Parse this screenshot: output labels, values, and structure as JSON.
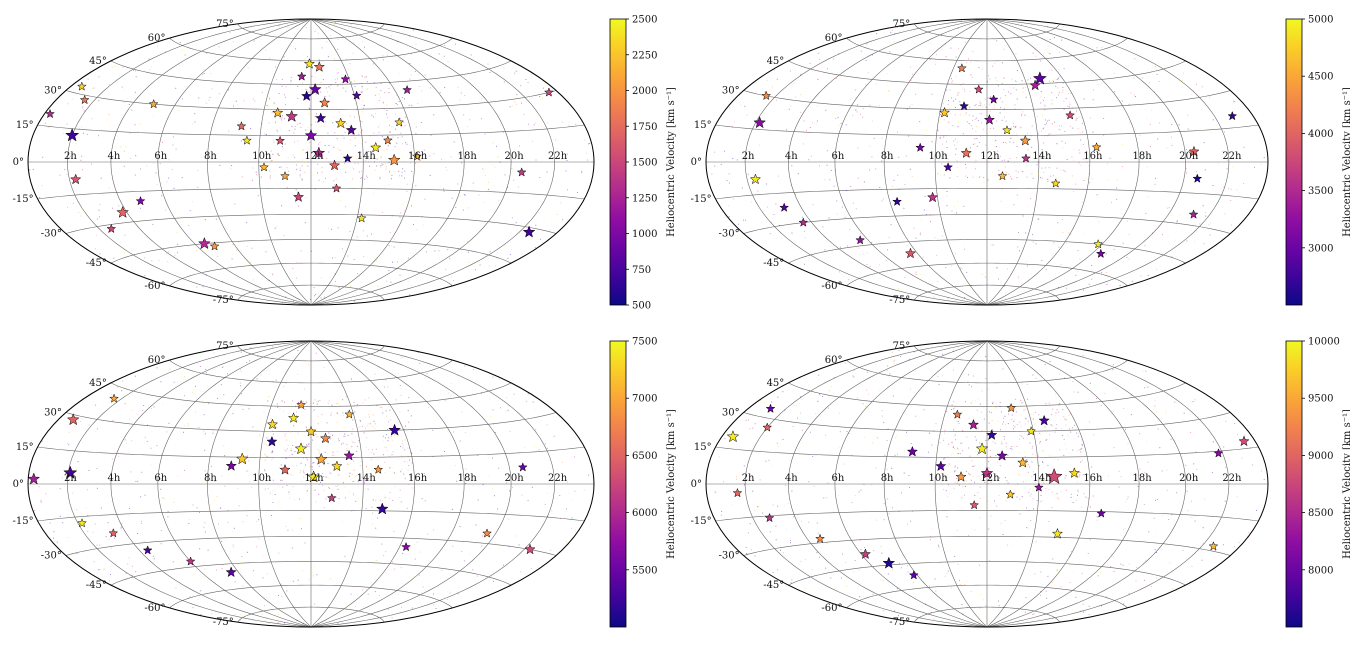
{
  "chart_data": [
    {
      "type": "scatter",
      "projection": "hammer-aitoff",
      "ra_tick_labels": [
        "2h",
        "4h",
        "6h",
        "8h",
        "10h",
        "12h",
        "14h",
        "16h",
        "18h",
        "20h",
        "22h"
      ],
      "dec_tick_labels": [
        "75°",
        "60°",
        "45°",
        "30°",
        "15°",
        "0°",
        "-15°",
        "-30°",
        "-45°",
        "-60°",
        "-75°"
      ],
      "colorbar": {
        "label": "Heliocentric Velocity [km s⁻¹]",
        "range": [
          500,
          2500
        ],
        "ticks": [
          500,
          750,
          1000,
          1250,
          1500,
          1750,
          2000,
          2250,
          2500
        ],
        "tick_labels": [
          "500",
          "750",
          "1000",
          "1250",
          "1500",
          "1750",
          "2000",
          "2250",
          "2500"
        ],
        "colormap": "plasma"
      },
      "star_markers": [
        {
          "ra_h": 11.9,
          "dec": 58,
          "v": 2400,
          "s": 7
        },
        {
          "ra_h": 12.5,
          "dec": 56,
          "v": 1800,
          "s": 7
        },
        {
          "ra_h": 11.5,
          "dec": 50,
          "v": 1200,
          "s": 6
        },
        {
          "ra_h": 12.2,
          "dec": 42,
          "v": 900,
          "s": 8
        },
        {
          "ra_h": 11.8,
          "dec": 38,
          "v": 600,
          "s": 7
        },
        {
          "ra_h": 12.6,
          "dec": 34,
          "v": 1900,
          "s": 7
        },
        {
          "ra_h": 10.6,
          "dec": 28,
          "v": 2200,
          "s": 7
        },
        {
          "ra_h": 11.2,
          "dec": 26,
          "v": 1400,
          "s": 8
        },
        {
          "ra_h": 12.4,
          "dec": 25,
          "v": 700,
          "s": 7
        },
        {
          "ra_h": 13.2,
          "dec": 22,
          "v": 2300,
          "s": 7
        },
        {
          "ra_h": 13.6,
          "dec": 18,
          "v": 800,
          "s": 7
        },
        {
          "ra_h": 12.0,
          "dec": 15,
          "v": 1000,
          "s": 8
        },
        {
          "ra_h": 10.8,
          "dec": 12,
          "v": 1600,
          "s": 6
        },
        {
          "ra_h": 14.5,
          "dec": 8,
          "v": 2400,
          "s": 7
        },
        {
          "ra_h": 12.3,
          "dec": 5,
          "v": 1300,
          "s": 8
        },
        {
          "ra_h": 13.4,
          "dec": 2,
          "v": 600,
          "s": 6
        },
        {
          "ra_h": 15.2,
          "dec": 1,
          "v": 2000,
          "s": 8
        },
        {
          "ra_h": 16.1,
          "dec": 3,
          "v": 2200,
          "s": 6
        },
        {
          "ra_h": 12.9,
          "dec": -2,
          "v": 1700,
          "s": 7
        },
        {
          "ra_h": 11.0,
          "dec": -8,
          "v": 2100,
          "s": 6
        },
        {
          "ra_h": 11.5,
          "dec": -20,
          "v": 1500,
          "s": 7
        },
        {
          "ra_h": 14.2,
          "dec": -32,
          "v": 2400,
          "s": 6
        },
        {
          "ra_h": 2.0,
          "dec": 12,
          "v": 700,
          "s": 9
        },
        {
          "ra_h": 2.3,
          "dec": -8,
          "v": 1600,
          "s": 7
        },
        {
          "ra_h": 3.8,
          "dec": -25,
          "v": 1700,
          "s": 8
        },
        {
          "ra_h": 2.6,
          "dec": -32,
          "v": 1500,
          "s": 6
        },
        {
          "ra_h": 6.5,
          "dec": -45,
          "v": 1300,
          "s": 8
        },
        {
          "ra_h": 6.9,
          "dec": -47,
          "v": 2000,
          "s": 6
        },
        {
          "ra_h": 1.5,
          "dec": 28,
          "v": 1800,
          "s": 6
        },
        {
          "ra_h": 0.6,
          "dec": 33,
          "v": 2300,
          "s": 6
        },
        {
          "ra_h": 5.0,
          "dec": 30,
          "v": 2100,
          "s": 6
        },
        {
          "ra_h": 22.5,
          "dec": -32,
          "v": 700,
          "s": 8
        },
        {
          "ra_h": 20.5,
          "dec": -5,
          "v": 1400,
          "s": 6
        },
        {
          "ra_h": 16.6,
          "dec": 40,
          "v": 1200,
          "s": 6
        },
        {
          "ra_h": 15.6,
          "dec": 22,
          "v": 2300,
          "s": 6
        },
        {
          "ra_h": 9.5,
          "dec": 12,
          "v": 2400,
          "s": 6
        },
        {
          "ra_h": 9.2,
          "dec": 20,
          "v": 1700,
          "s": 6
        },
        {
          "ra_h": 13.8,
          "dec": 48,
          "v": 1100,
          "s": 6
        },
        {
          "ra_h": 14.1,
          "dec": 38,
          "v": 800,
          "s": 6
        },
        {
          "ra_h": 15.0,
          "dec": 12,
          "v": 1900,
          "s": 6
        },
        {
          "ra_h": 10.2,
          "dec": -3,
          "v": 2200,
          "s": 6
        },
        {
          "ra_h": 13.0,
          "dec": -15,
          "v": 1600,
          "s": 6
        },
        {
          "ra_h": 4.9,
          "dec": -20,
          "v": 1000,
          "s": 6
        },
        {
          "ra_h": 0.3,
          "dec": 20,
          "v": 1300,
          "s": 6
        },
        {
          "ra_h": 23.5,
          "dec": 30,
          "v": 1500,
          "s": 6
        }
      ]
    },
    {
      "type": "scatter",
      "projection": "hammer-aitoff",
      "ra_tick_labels": [
        "2h",
        "4h",
        "6h",
        "8h",
        "10h",
        "12h",
        "14h",
        "16h",
        "18h",
        "20h",
        "22h"
      ],
      "dec_tick_labels": [
        "75°",
        "60°",
        "45°",
        "30°",
        "15°",
        "0°",
        "-15°",
        "-30°",
        "-45°",
        "-60°",
        "-75°"
      ],
      "colorbar": {
        "label": "Heliocentric Velocity [km s⁻¹]",
        "range": [
          2500,
          5000
        ],
        "ticks": [
          3000,
          3500,
          4000,
          4500,
          5000
        ],
        "tick_labels": [
          "3000",
          "3500",
          "4000",
          "4500",
          "5000"
        ],
        "colormap": "plasma"
      },
      "star_markers": [
        {
          "ra_h": 10.5,
          "dec": 55,
          "v": 4200,
          "s": 6
        },
        {
          "ra_h": 14.8,
          "dec": 48,
          "v": 2900,
          "s": 9
        },
        {
          "ra_h": 14.4,
          "dec": 44,
          "v": 3400,
          "s": 7
        },
        {
          "ra_h": 11.6,
          "dec": 42,
          "v": 3800,
          "s": 6
        },
        {
          "ra_h": 10.2,
          "dec": 28,
          "v": 4700,
          "s": 7
        },
        {
          "ra_h": 11.0,
          "dec": 32,
          "v": 2700,
          "s": 6
        },
        {
          "ra_h": 12.1,
          "dec": 24,
          "v": 3300,
          "s": 7
        },
        {
          "ra_h": 12.8,
          "dec": 18,
          "v": 4900,
          "s": 6
        },
        {
          "ra_h": 13.5,
          "dec": 12,
          "v": 4400,
          "s": 7
        },
        {
          "ra_h": 9.4,
          "dec": 8,
          "v": 3100,
          "s": 6
        },
        {
          "ra_h": 11.2,
          "dec": 5,
          "v": 4100,
          "s": 7
        },
        {
          "ra_h": 10.5,
          "dec": -3,
          "v": 2800,
          "s": 6
        },
        {
          "ra_h": 12.6,
          "dec": -8,
          "v": 4600,
          "s": 6
        },
        {
          "ra_h": 13.5,
          "dec": 2,
          "v": 3600,
          "s": 6
        },
        {
          "ra_h": 14.7,
          "dec": -12,
          "v": 4800,
          "s": 6
        },
        {
          "ra_h": 2.2,
          "dec": 18,
          "v": 3200,
          "s": 8
        },
        {
          "ra_h": 2.4,
          "dec": -8,
          "v": 4900,
          "s": 7
        },
        {
          "ra_h": 3.2,
          "dec": -22,
          "v": 2900,
          "s": 6
        },
        {
          "ra_h": 3.6,
          "dec": -30,
          "v": 3500,
          "s": 6
        },
        {
          "ra_h": 5.6,
          "dec": -42,
          "v": 3300,
          "s": 6
        },
        {
          "ra_h": 7.6,
          "dec": -52,
          "v": 3900,
          "s": 7
        },
        {
          "ra_h": 20.4,
          "dec": 5,
          "v": 4000,
          "s": 7
        },
        {
          "ra_h": 20.6,
          "dec": -8,
          "v": 2600,
          "s": 6
        },
        {
          "ra_h": 22.9,
          "dec": 20,
          "v": 2700,
          "s": 6
        },
        {
          "ra_h": 17.8,
          "dec": -45,
          "v": 4900,
          "s": 6
        },
        {
          "ra_h": 18.5,
          "dec": -50,
          "v": 3100,
          "s": 6
        },
        {
          "ra_h": 21.2,
          "dec": -25,
          "v": 3400,
          "s": 6
        },
        {
          "ra_h": 1.5,
          "dec": 30,
          "v": 4300,
          "s": 6
        },
        {
          "ra_h": 15.5,
          "dec": 26,
          "v": 3800,
          "s": 6
        },
        {
          "ra_h": 9.8,
          "dec": -20,
          "v": 3600,
          "s": 7
        },
        {
          "ra_h": 8.3,
          "dec": -22,
          "v": 2700,
          "s": 6
        },
        {
          "ra_h": 16.3,
          "dec": 8,
          "v": 4500,
          "s": 6
        },
        {
          "ra_h": 12.3,
          "dec": 36,
          "v": 3000,
          "s": 6
        }
      ]
    },
    {
      "type": "scatter",
      "projection": "hammer-aitoff",
      "ra_tick_labels": [
        "2h",
        "4h",
        "6h",
        "8h",
        "10h",
        "12h",
        "14h",
        "16h",
        "18h",
        "20h",
        "22h"
      ],
      "dec_tick_labels": [
        "75°",
        "60°",
        "45°",
        "30°",
        "15°",
        "0°",
        "-15°",
        "-30°",
        "-45°",
        "-60°",
        "-75°"
      ],
      "colorbar": {
        "label": "Heliocentric Velocity [km s⁻¹]",
        "range": [
          5000,
          7500
        ],
        "ticks": [
          5500,
          6000,
          6500,
          7000,
          7500
        ],
        "tick_labels": [
          "5500",
          "6000",
          "6500",
          "7000",
          "7500"
        ],
        "colormap": "plasma"
      },
      "star_markers": [
        {
          "ra_h": 10.3,
          "dec": 34,
          "v": 7300,
          "s": 7
        },
        {
          "ra_h": 11.2,
          "dec": 38,
          "v": 7400,
          "s": 7
        },
        {
          "ra_h": 12.0,
          "dec": 30,
          "v": 7200,
          "s": 7
        },
        {
          "ra_h": 12.6,
          "dec": 26,
          "v": 6800,
          "s": 7
        },
        {
          "ra_h": 11.6,
          "dec": 20,
          "v": 7400,
          "s": 8
        },
        {
          "ra_h": 12.4,
          "dec": 14,
          "v": 7000,
          "s": 8
        },
        {
          "ra_h": 13.0,
          "dec": 10,
          "v": 7300,
          "s": 7
        },
        {
          "ra_h": 11.0,
          "dec": 8,
          "v": 6500,
          "s": 7
        },
        {
          "ra_h": 12.1,
          "dec": 4,
          "v": 7400,
          "s": 8
        },
        {
          "ra_h": 13.5,
          "dec": 16,
          "v": 5800,
          "s": 7
        },
        {
          "ra_h": 14.6,
          "dec": 8,
          "v": 6900,
          "s": 6
        },
        {
          "ra_h": 9.3,
          "dec": 14,
          "v": 7200,
          "s": 8
        },
        {
          "ra_h": 8.9,
          "dec": 10,
          "v": 5600,
          "s": 7
        },
        {
          "ra_h": 10.4,
          "dec": 24,
          "v": 5200,
          "s": 7
        },
        {
          "ra_h": 15.6,
          "dec": 30,
          "v": 5200,
          "s": 8
        },
        {
          "ra_h": 2.1,
          "dec": 5,
          "v": 5300,
          "s": 9
        },
        {
          "ra_h": 0.3,
          "dec": 2,
          "v": 5900,
          "s": 8
        },
        {
          "ra_h": 2.2,
          "dec": -18,
          "v": 7400,
          "s": 6
        },
        {
          "ra_h": 3.4,
          "dec": -24,
          "v": 6500,
          "s": 6
        },
        {
          "ra_h": 4.4,
          "dec": -34,
          "v": 5300,
          "s": 6
        },
        {
          "ra_h": 6.0,
          "dec": -42,
          "v": 6100,
          "s": 6
        },
        {
          "ra_h": 7.6,
          "dec": -50,
          "v": 5400,
          "s": 7
        },
        {
          "ra_h": 14.8,
          "dec": -14,
          "v": 5200,
          "s": 8
        },
        {
          "ra_h": 19.6,
          "dec": -25,
          "v": 6800,
          "s": 6
        },
        {
          "ra_h": 20.6,
          "dec": 8,
          "v": 5500,
          "s": 6
        },
        {
          "ra_h": 1.6,
          "dec": 40,
          "v": 7000,
          "s": 6
        },
        {
          "ra_h": 0.8,
          "dec": 28,
          "v": 6500,
          "s": 8
        },
        {
          "ra_h": 16.3,
          "dec": -35,
          "v": 5700,
          "s": 6
        },
        {
          "ra_h": 22.3,
          "dec": -30,
          "v": 6300,
          "s": 7
        },
        {
          "ra_h": 12.8,
          "dec": -8,
          "v": 6200,
          "s": 6
        },
        {
          "ra_h": 13.8,
          "dec": 40,
          "v": 7100,
          "s": 6
        },
        {
          "ra_h": 11.5,
          "dec": 46,
          "v": 7000,
          "s": 6
        }
      ]
    },
    {
      "type": "scatter",
      "projection": "hammer-aitoff",
      "ra_tick_labels": [
        "2h",
        "4h",
        "6h",
        "8h",
        "10h",
        "12h",
        "14h",
        "16h",
        "18h",
        "20h",
        "22h"
      ],
      "dec_tick_labels": [
        "75°",
        "60°",
        "45°",
        "30°",
        "15°",
        "0°",
        "-15°",
        "-30°",
        "-45°",
        "-60°",
        "-75°"
      ],
      "colorbar": {
        "label": "Heliocentric Velocity [km s⁻¹]",
        "range": [
          7500,
          10000
        ],
        "ticks": [
          8000,
          8500,
          9000,
          9500,
          10000
        ],
        "tick_labels": [
          "8000",
          "8500",
          "9000",
          "9500",
          "10000"
        ],
        "colormap": "plasma"
      },
      "star_markers": [
        {
          "ra_h": 10.6,
          "dec": 40,
          "v": 9200,
          "s": 6
        },
        {
          "ra_h": 11.4,
          "dec": 34,
          "v": 8400,
          "s": 7
        },
        {
          "ra_h": 12.2,
          "dec": 28,
          "v": 7700,
          "s": 7
        },
        {
          "ra_h": 11.8,
          "dec": 20,
          "v": 9900,
          "s": 8
        },
        {
          "ra_h": 12.6,
          "dec": 16,
          "v": 8100,
          "s": 7
        },
        {
          "ra_h": 13.4,
          "dec": 12,
          "v": 9600,
          "s": 7
        },
        {
          "ra_h": 10.2,
          "dec": 10,
          "v": 7900,
          "s": 7
        },
        {
          "ra_h": 11.0,
          "dec": 4,
          "v": 9400,
          "s": 7
        },
        {
          "ra_h": 12.0,
          "dec": 6,
          "v": 8600,
          "s": 8
        },
        {
          "ra_h": 14.6,
          "dec": 4,
          "v": 8800,
          "s": 11
        },
        {
          "ra_h": 15.4,
          "dec": 6,
          "v": 9800,
          "s": 7
        },
        {
          "ra_h": 14.0,
          "dec": -2,
          "v": 8300,
          "s": 6
        },
        {
          "ra_h": 12.9,
          "dec": -6,
          "v": 9700,
          "s": 6
        },
        {
          "ra_h": 9.0,
          "dec": 18,
          "v": 8000,
          "s": 7
        },
        {
          "ra_h": 13.9,
          "dec": 30,
          "v": 9900,
          "s": 6
        },
        {
          "ra_h": 14.6,
          "dec": 36,
          "v": 7800,
          "s": 7
        },
        {
          "ra_h": 0.6,
          "dec": 20,
          "v": 9900,
          "s": 8
        },
        {
          "ra_h": 1.6,
          "dec": -4,
          "v": 9000,
          "s": 6
        },
        {
          "ra_h": 2.8,
          "dec": -16,
          "v": 8600,
          "s": 6
        },
        {
          "ra_h": 4.6,
          "dec": -28,
          "v": 9300,
          "s": 6
        },
        {
          "ra_h": 6.2,
          "dec": -38,
          "v": 8700,
          "s": 7
        },
        {
          "ra_h": 7.0,
          "dec": -44,
          "v": 7600,
          "s": 8
        },
        {
          "ra_h": 7.8,
          "dec": -52,
          "v": 7900,
          "s": 6
        },
        {
          "ra_h": 22.6,
          "dec": -28,
          "v": 9600,
          "s": 6
        },
        {
          "ra_h": 21.8,
          "dec": 14,
          "v": 8200,
          "s": 6
        },
        {
          "ra_h": 23.4,
          "dec": 18,
          "v": 8800,
          "s": 7
        },
        {
          "ra_h": 16.6,
          "dec": -16,
          "v": 8000,
          "s": 6
        },
        {
          "ra_h": 15.0,
          "dec": -28,
          "v": 9900,
          "s": 7
        },
        {
          "ra_h": 1.2,
          "dec": 34,
          "v": 8000,
          "s": 6
        },
        {
          "ra_h": 2.0,
          "dec": 26,
          "v": 9000,
          "s": 6
        },
        {
          "ra_h": 11.5,
          "dec": -12,
          "v": 8900,
          "s": 6
        },
        {
          "ra_h": 13.2,
          "dec": 44,
          "v": 9400,
          "s": 6
        }
      ]
    }
  ]
}
